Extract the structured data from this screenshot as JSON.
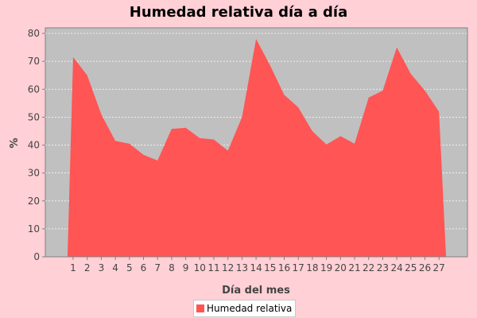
{
  "chart_data": {
    "type": "area",
    "title": "Humedad relativa día a día",
    "xlabel": "Día del mes",
    "ylabel": "%",
    "ylim": [
      0,
      82
    ],
    "yticks": [
      0,
      10,
      20,
      30,
      40,
      50,
      60,
      70,
      80
    ],
    "grid": true,
    "legend_position": "bottom",
    "x": [
      1,
      2,
      3,
      4,
      5,
      6,
      7,
      8,
      9,
      10,
      11,
      12,
      13,
      14,
      15,
      16,
      17,
      18,
      19,
      20,
      21,
      22,
      23,
      24,
      25,
      26,
      27
    ],
    "series": [
      {
        "name": "Humedad relativa",
        "color": "#ff5555",
        "values": [
          71.5,
          65,
          51,
          41.5,
          40.5,
          36.5,
          34.5,
          45.8,
          46.2,
          42.5,
          42,
          38,
          50,
          78,
          68.5,
          58,
          53.5,
          45,
          40.2,
          43.2,
          40.5,
          57,
          59.5,
          75,
          65.5,
          59.5,
          52
        ]
      }
    ]
  },
  "colors": {
    "background": "#ffd0d6",
    "plot_background": "#c0c0c0",
    "series": "#ff5555"
  }
}
